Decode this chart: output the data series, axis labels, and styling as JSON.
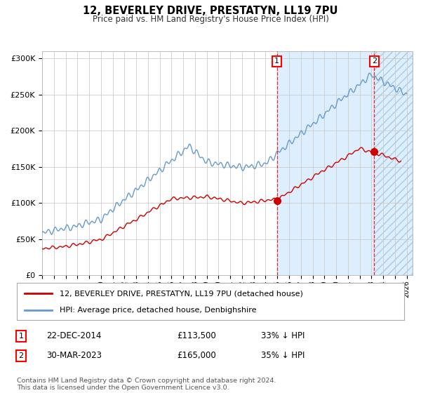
{
  "title": "12, BEVERLEY DRIVE, PRESTATYN, LL19 7PU",
  "subtitle": "Price paid vs. HM Land Registry's House Price Index (HPI)",
  "hpi_label": "HPI: Average price, detached house, Denbighshire",
  "price_label": "12, BEVERLEY DRIVE, PRESTATYN, LL19 7PU (detached house)",
  "annotation1": {
    "label": "1",
    "date": "22-DEC-2014",
    "price": "£113,500",
    "pct": "33% ↓ HPI",
    "year": 2014.97
  },
  "annotation2": {
    "label": "2",
    "date": "30-MAR-2023",
    "price": "£165,000",
    "pct": "35% ↓ HPI",
    "year": 2023.24
  },
  "price_color": "#cc0000",
  "hpi_color": "#6699cc",
  "background_color": "#ffffff",
  "plot_bg_color": "#ffffff",
  "shaded_bg_color": "#ddeeff",
  "ylim": [
    0,
    310000
  ],
  "xlim_start": 1995,
  "xlim_end": 2026.5,
  "yticks": [
    0,
    50000,
    100000,
    150000,
    200000,
    250000,
    300000
  ],
  "ylabels": [
    "£0",
    "£50K",
    "£100K",
    "£150K",
    "£200K",
    "£250K",
    "£300K"
  ],
  "footer": "Contains HM Land Registry data © Crown copyright and database right 2024.\nThis data is licensed under the Open Government Licence v3.0."
}
